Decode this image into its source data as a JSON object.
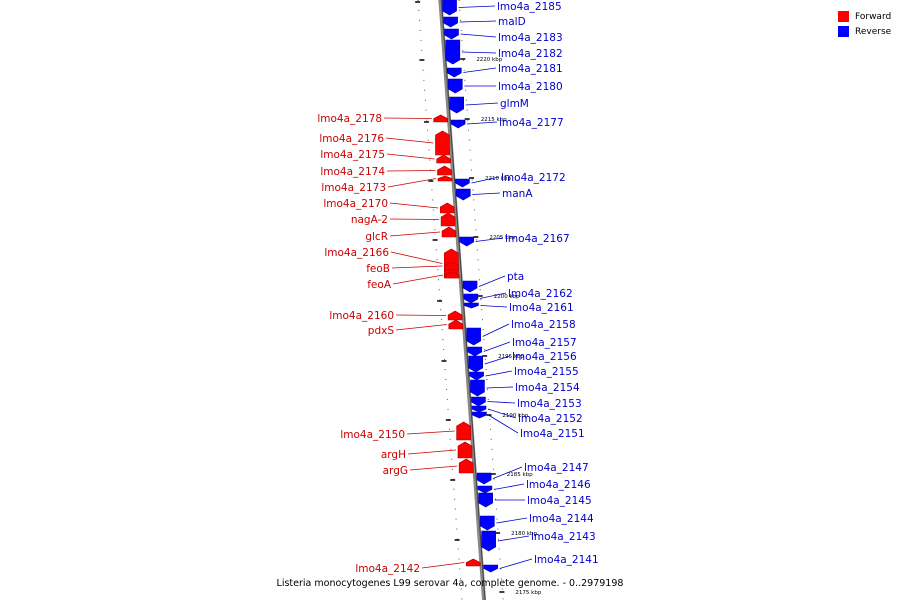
{
  "legend": {
    "forward_label": "Forward",
    "reverse_label": "Reverse",
    "forward_color": "#ff0000",
    "reverse_color": "#0000ff"
  },
  "caption": "Listeria monocytogenes L99 serovar 4a, complete genome. - 0..2979198",
  "label_colors": {
    "forward": "#cc0000",
    "reverse": "#0000cc"
  },
  "ticks": [
    "2220 kbp",
    "2215 kbp",
    "2210 kbp",
    "2205 kbp",
    "2200 kbp",
    "2195 kbp",
    "2190 kbp",
    "2185 kbp",
    "2180 kbp",
    "2175 kbp"
  ],
  "genes": [
    {
      "name": "lmo4a_2185",
      "strand": "reverse"
    },
    {
      "name": "malD",
      "strand": "reverse"
    },
    {
      "name": "lmo4a_2183",
      "strand": "reverse"
    },
    {
      "name": "lmo4a_2182",
      "strand": "reverse"
    },
    {
      "name": "lmo4a_2181",
      "strand": "reverse"
    },
    {
      "name": "lmo4a_2180",
      "strand": "reverse"
    },
    {
      "name": "glmM",
      "strand": "reverse"
    },
    {
      "name": "lmo4a_2178",
      "strand": "forward"
    },
    {
      "name": "lmo4a_2177",
      "strand": "reverse"
    },
    {
      "name": "lmo4a_2176",
      "strand": "forward"
    },
    {
      "name": "lmo4a_2175",
      "strand": "forward"
    },
    {
      "name": "lmo4a_2174",
      "strand": "forward"
    },
    {
      "name": "lmo4a_2173",
      "strand": "forward"
    },
    {
      "name": "lmo4a_2172",
      "strand": "reverse"
    },
    {
      "name": "manA",
      "strand": "reverse"
    },
    {
      "name": "lmo4a_2170",
      "strand": "forward"
    },
    {
      "name": "nagA-2",
      "strand": "forward"
    },
    {
      "name": "glcR",
      "strand": "forward"
    },
    {
      "name": "lmo4a_2167",
      "strand": "reverse"
    },
    {
      "name": "lmo4a_2166",
      "strand": "forward"
    },
    {
      "name": "feoB",
      "strand": "forward"
    },
    {
      "name": "feoA",
      "strand": "forward"
    },
    {
      "name": "pta",
      "strand": "reverse"
    },
    {
      "name": "lmo4a_2162",
      "strand": "reverse"
    },
    {
      "name": "lmo4a_2161",
      "strand": "reverse"
    },
    {
      "name": "lmo4a_2160",
      "strand": "forward"
    },
    {
      "name": "pdxS",
      "strand": "forward"
    },
    {
      "name": "lmo4a_2158",
      "strand": "reverse"
    },
    {
      "name": "lmo4a_2157",
      "strand": "reverse"
    },
    {
      "name": "lmo4a_2156",
      "strand": "reverse"
    },
    {
      "name": "lmo4a_2155",
      "strand": "reverse"
    },
    {
      "name": "lmo4a_2154",
      "strand": "reverse"
    },
    {
      "name": "lmo4a_2153",
      "strand": "reverse"
    },
    {
      "name": "lmo4a_2152",
      "strand": "reverse"
    },
    {
      "name": "lmo4a_2151",
      "strand": "reverse"
    },
    {
      "name": "lmo4a_2150",
      "strand": "forward"
    },
    {
      "name": "argH",
      "strand": "forward"
    },
    {
      "name": "argG",
      "strand": "forward"
    },
    {
      "name": "lmo4a_2147",
      "strand": "reverse"
    },
    {
      "name": "lmo4a_2146",
      "strand": "reverse"
    },
    {
      "name": "lmo4a_2145",
      "strand": "reverse"
    },
    {
      "name": "lmo4a_2144",
      "strand": "reverse"
    },
    {
      "name": "lmo4a_2143",
      "strand": "reverse"
    },
    {
      "name": "lmo4a_2142",
      "strand": "forward"
    },
    {
      "name": "lmo4a_2141",
      "strand": "reverse"
    }
  ]
}
